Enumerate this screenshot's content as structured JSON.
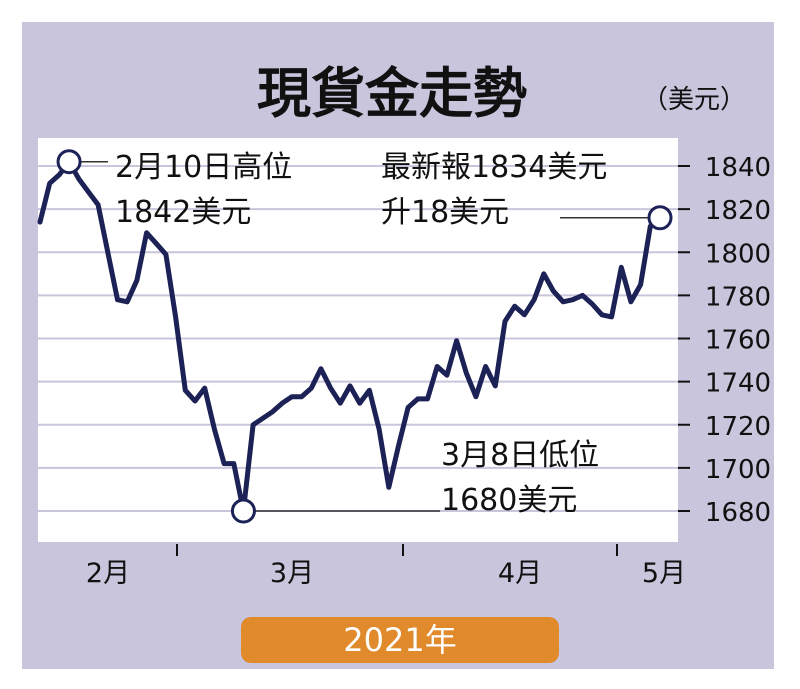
{
  "chart_data": {
    "type": "line",
    "title": "現貨金走勢",
    "unit_label": "（美元）",
    "year_label": "2021年",
    "x_tick_labels": [
      "2月",
      "3月",
      "4月",
      "5月"
    ],
    "y_ticks": [
      1840,
      1820,
      1800,
      1780,
      1760,
      1740,
      1720,
      1700,
      1680
    ],
    "ylim": [
      1670,
      1850
    ],
    "grid": true,
    "series": [
      {
        "values": [
          1814,
          1832,
          1836,
          1842,
          1834,
          1828,
          1822,
          1800,
          1778,
          1777,
          1787,
          1809,
          1804,
          1799,
          1770,
          1736,
          1731,
          1737,
          1718,
          1702,
          1702,
          1680,
          1720,
          1723,
          1726,
          1730,
          1733,
          1733,
          1737,
          1746,
          1737,
          1730,
          1738,
          1730,
          1736,
          1718,
          1691,
          1710,
          1728,
          1732,
          1732,
          1747,
          1743,
          1759,
          1744,
          1733,
          1747,
          1738,
          1768,
          1775,
          1771,
          1778,
          1790,
          1782,
          1777,
          1778,
          1780,
          1776,
          1771,
          1770,
          1793,
          1777,
          1785,
          1812,
          1816
        ]
      }
    ],
    "annotations": [
      {
        "role": "high",
        "line1": "2月10日高位",
        "line2": "1842美元",
        "value": 1842
      },
      {
        "role": "low",
        "line1": "3月8日低位",
        "line2": "1680美元",
        "value": 1680
      },
      {
        "role": "latest",
        "line1": "最新報1834美元",
        "line2": "升18美元",
        "value": 1816
      }
    ]
  },
  "colors": {
    "panel_background": "#c9c5dc",
    "plot_background": "#ffffff",
    "line": "#1c2156",
    "gridline": "#c9c5dc",
    "year_badge": "#e08a2c",
    "year_text": "#ffffff"
  }
}
